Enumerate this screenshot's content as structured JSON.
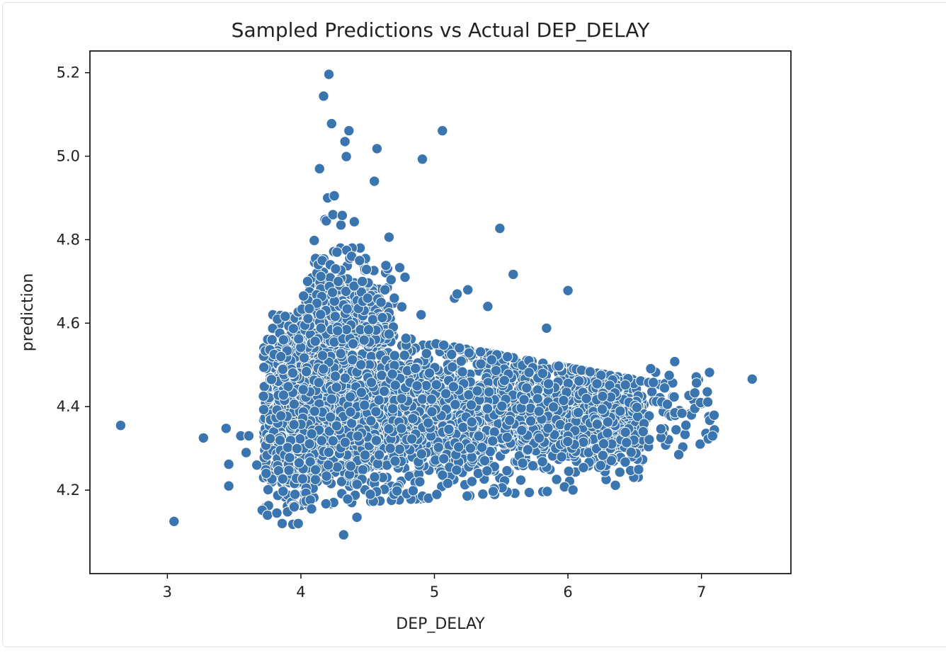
{
  "chart_data": {
    "type": "scatter",
    "title": "Sampled Predictions vs Actual DEP_DELAY",
    "xlabel": "DEP_DELAY",
    "ylabel": "prediction",
    "xlim": [
      2.42,
      7.67
    ],
    "ylim": [
      4.0,
      5.252
    ],
    "xticks": [
      "3",
      "4",
      "5",
      "6",
      "7"
    ],
    "yticks": [
      "4.2",
      "4.4",
      "4.6",
      "4.8",
      "5.0",
      "5.2"
    ],
    "grid": false,
    "legend": "none",
    "marker_color": "#3a75af",
    "marker_edge": "#ffffff",
    "points": {
      "x": [
        2.65,
        3.05,
        3.27,
        3.44,
        3.46,
        3.46,
        3.55,
        3.59,
        3.61,
        3.67,
        3.71,
        3.72,
        3.74,
        3.75,
        3.78,
        3.8,
        3.82,
        3.85,
        3.86,
        3.87,
        3.9,
        3.94,
        3.95,
        3.98,
        4.02,
        4.05,
        4.08,
        4.1,
        4.11,
        4.12,
        4.13,
        4.14,
        4.15,
        4.16,
        4.17,
        4.18,
        4.19,
        4.2,
        4.21,
        4.22,
        4.23,
        4.24,
        4.25,
        4.26,
        4.27,
        4.28,
        4.3,
        4.31,
        4.32,
        4.33,
        4.34,
        4.36,
        4.38,
        4.4,
        4.42,
        4.44,
        4.46,
        4.5,
        4.52,
        4.55,
        4.57,
        4.6,
        4.63,
        4.66,
        4.7,
        4.72,
        4.74,
        4.78,
        4.9,
        4.91,
        5.06,
        5.15,
        5.17,
        5.25,
        5.4,
        5.44,
        5.49,
        5.59,
        5.84,
        6.0,
        6.43,
        6.62,
        6.8,
        6.83,
        6.95,
        7.06,
        7.38
      ],
      "y": [
        4.355,
        4.125,
        4.325,
        4.348,
        4.262,
        4.21,
        4.33,
        4.29,
        4.33,
        4.26,
        4.152,
        4.425,
        4.24,
        4.14,
        4.465,
        4.525,
        4.145,
        4.52,
        4.12,
        4.56,
        4.148,
        4.118,
        4.16,
        4.12,
        4.665,
        4.7,
        4.155,
        4.798,
        4.755,
        4.72,
        4.74,
        4.97,
        4.712,
        4.75,
        5.144,
        4.848,
        4.845,
        4.9,
        5.196,
        4.74,
        5.078,
        4.86,
        4.905,
        4.73,
        4.77,
        4.7,
        4.835,
        4.858,
        4.093,
        5.035,
        4.999,
        5.061,
        4.76,
        4.843,
        4.135,
        4.75,
        4.7,
        4.66,
        4.19,
        4.94,
        5.018,
        4.65,
        4.68,
        4.806,
        4.66,
        4.198,
        4.733,
        4.71,
        4.62,
        4.993,
        5.061,
        4.66,
        4.67,
        4.68,
        4.64,
        4.197,
        4.827,
        4.717,
        4.588,
        4.678,
        4.452,
        4.491,
        4.508,
        4.285,
        4.433,
        4.482,
        4.466
      ]
    },
    "dense_region": "scatter of about 3000 sampled points, concentrated between DEP_DELAY 3.8 and 6.6 and prediction 4.17 to 4.62"
  }
}
